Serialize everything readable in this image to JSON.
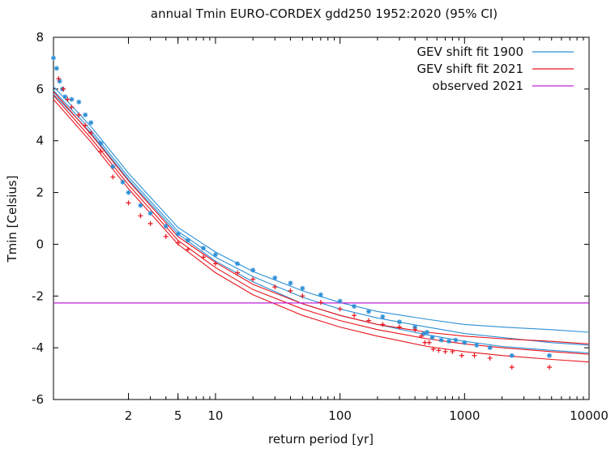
{
  "chart_data": {
    "type": "scatter",
    "title": "annual  Tmin EURO-CORDEX gdd250 1952:2020 (95% CI)",
    "xlabel": "return period [yr]",
    "ylabel": "Tmin [Celsius]",
    "x_scale": "log",
    "xlim": [
      0.5,
      10000
    ],
    "ylim": [
      -6,
      8
    ],
    "x_ticks": [
      {
        "value": 2,
        "label": "2"
      },
      {
        "value": 5,
        "label": "5"
      },
      {
        "value": 10,
        "label": "10"
      },
      {
        "value": 100,
        "label": "100"
      },
      {
        "value": 1000,
        "label": "1000"
      },
      {
        "value": 10000,
        "label": "10000"
      }
    ],
    "y_ticks": [
      {
        "value": 8,
        "label": "8"
      },
      {
        "value": 6,
        "label": "6"
      },
      {
        "value": 4,
        "label": "4"
      },
      {
        "value": 2,
        "label": "2"
      },
      {
        "value": 0,
        "label": "0"
      },
      {
        "value": -2,
        "label": "-2"
      },
      {
        "value": -4,
        "label": "-4"
      },
      {
        "value": -6,
        "label": "-6"
      }
    ],
    "legend": {
      "position": "top-right",
      "entries": [
        {
          "label": "GEV shift fit 1900",
          "color": "#2b8fd6"
        },
        {
          "label": "GEV shift fit 2021",
          "color": "#e8141c"
        },
        {
          "label": "observed 2021",
          "color": "#c020d8"
        }
      ]
    },
    "series": [
      {
        "name": "GEV shift fit 1900",
        "color": "#2b8fd6",
        "marker": "*",
        "points": [
          [
            0.5,
            7.2
          ],
          [
            0.53,
            6.8
          ],
          [
            0.56,
            6.3
          ],
          [
            0.59,
            6.0
          ],
          [
            0.62,
            5.7
          ],
          [
            0.7,
            5.6
          ],
          [
            0.8,
            5.5
          ],
          [
            0.9,
            5.0
          ],
          [
            1.0,
            4.7
          ],
          [
            1.2,
            3.9
          ],
          [
            1.5,
            3.0
          ],
          [
            1.8,
            2.4
          ],
          [
            2,
            2.0
          ],
          [
            2.5,
            1.5
          ],
          [
            3,
            1.2
          ],
          [
            4,
            0.7
          ],
          [
            5,
            0.4
          ],
          [
            6,
            0.15
          ],
          [
            8,
            -0.15
          ],
          [
            10,
            -0.4
          ],
          [
            15,
            -0.75
          ],
          [
            20,
            -1.0
          ],
          [
            30,
            -1.3
          ],
          [
            40,
            -1.5
          ],
          [
            50,
            -1.7
          ],
          [
            70,
            -1.95
          ],
          [
            100,
            -2.2
          ],
          [
            130,
            -2.4
          ],
          [
            170,
            -2.6
          ],
          [
            220,
            -2.8
          ],
          [
            300,
            -3.0
          ],
          [
            400,
            -3.2
          ],
          [
            470,
            -3.45
          ],
          [
            500,
            -3.4
          ],
          [
            550,
            -3.6
          ],
          [
            650,
            -3.7
          ],
          [
            750,
            -3.75
          ],
          [
            850,
            -3.7
          ],
          [
            1000,
            -3.8
          ],
          [
            1250,
            -3.9
          ],
          [
            1600,
            -4.0
          ],
          [
            2400,
            -4.3
          ],
          [
            4800,
            -4.3
          ]
        ],
        "fit": [
          [
            0.5,
            5.95
          ],
          [
            1,
            4.4
          ],
          [
            2,
            2.6
          ],
          [
            5,
            0.5
          ],
          [
            10,
            -0.5
          ],
          [
            20,
            -1.25
          ],
          [
            50,
            -2.05
          ],
          [
            100,
            -2.5
          ],
          [
            200,
            -2.85
          ],
          [
            500,
            -3.2
          ],
          [
            1000,
            -3.45
          ],
          [
            2000,
            -3.6
          ],
          [
            5000,
            -3.8
          ],
          [
            10000,
            -3.9
          ]
        ],
        "ci_upper": [
          [
            0.5,
            6.1
          ],
          [
            1,
            4.55
          ],
          [
            2,
            2.75
          ],
          [
            5,
            0.65
          ],
          [
            10,
            -0.3
          ],
          [
            20,
            -1.05
          ],
          [
            50,
            -1.8
          ],
          [
            100,
            -2.25
          ],
          [
            200,
            -2.6
          ],
          [
            500,
            -2.9
          ],
          [
            1000,
            -3.1
          ],
          [
            2000,
            -3.2
          ],
          [
            5000,
            -3.3
          ],
          [
            10000,
            -3.4
          ]
        ],
        "ci_lower": [
          [
            0.5,
            5.8
          ],
          [
            1,
            4.3
          ],
          [
            2,
            2.5
          ],
          [
            5,
            0.4
          ],
          [
            10,
            -0.65
          ],
          [
            20,
            -1.45
          ],
          [
            50,
            -2.3
          ],
          [
            100,
            -2.75
          ],
          [
            200,
            -3.1
          ],
          [
            500,
            -3.5
          ],
          [
            1000,
            -3.75
          ],
          [
            2000,
            -3.95
          ],
          [
            5000,
            -4.1
          ],
          [
            10000,
            -4.2
          ]
        ]
      },
      {
        "name": "GEV shift fit 2021",
        "color": "#e8141c",
        "marker": "+",
        "points": [
          [
            0.55,
            6.4
          ],
          [
            0.6,
            6.0
          ],
          [
            0.65,
            5.6
          ],
          [
            0.7,
            5.3
          ],
          [
            0.8,
            5.0
          ],
          [
            0.9,
            4.6
          ],
          [
            1.0,
            4.3
          ],
          [
            1.2,
            3.6
          ],
          [
            1.5,
            2.6
          ],
          [
            2,
            1.6
          ],
          [
            2.5,
            1.1
          ],
          [
            3,
            0.8
          ],
          [
            4,
            0.3
          ],
          [
            5,
            0.05
          ],
          [
            6,
            -0.2
          ],
          [
            8,
            -0.5
          ],
          [
            10,
            -0.75
          ],
          [
            15,
            -1.1
          ],
          [
            20,
            -1.35
          ],
          [
            30,
            -1.65
          ],
          [
            40,
            -1.8
          ],
          [
            50,
            -2.0
          ],
          [
            70,
            -2.25
          ],
          [
            100,
            -2.5
          ],
          [
            130,
            -2.75
          ],
          [
            170,
            -2.95
          ],
          [
            220,
            -3.1
          ],
          [
            300,
            -3.2
          ],
          [
            400,
            -3.3
          ],
          [
            450,
            -3.55
          ],
          [
            480,
            -3.8
          ],
          [
            520,
            -3.8
          ],
          [
            560,
            -4.05
          ],
          [
            620,
            -4.1
          ],
          [
            700,
            -4.15
          ],
          [
            800,
            -4.15
          ],
          [
            950,
            -4.3
          ],
          [
            1200,
            -4.3
          ],
          [
            1600,
            -4.4
          ],
          [
            2400,
            -4.75
          ],
          [
            4800,
            -4.75
          ]
        ],
        "fit": [
          [
            0.5,
            5.75
          ],
          [
            1,
            4.1
          ],
          [
            2,
            2.3
          ],
          [
            5,
            0.15
          ],
          [
            10,
            -0.9
          ],
          [
            20,
            -1.75
          ],
          [
            50,
            -2.5
          ],
          [
            100,
            -2.95
          ],
          [
            200,
            -3.3
          ],
          [
            500,
            -3.65
          ],
          [
            1000,
            -3.85
          ],
          [
            2000,
            -4.0
          ],
          [
            5000,
            -4.15
          ],
          [
            10000,
            -4.25
          ]
        ],
        "ci_upper": [
          [
            0.5,
            5.9
          ],
          [
            1,
            4.25
          ],
          [
            2,
            2.45
          ],
          [
            5,
            0.3
          ],
          [
            10,
            -0.7
          ],
          [
            20,
            -1.55
          ],
          [
            50,
            -2.3
          ],
          [
            100,
            -2.75
          ],
          [
            200,
            -3.1
          ],
          [
            500,
            -3.4
          ],
          [
            1000,
            -3.55
          ],
          [
            2000,
            -3.65
          ],
          [
            5000,
            -3.75
          ],
          [
            10000,
            -3.85
          ]
        ],
        "ci_lower": [
          [
            0.5,
            5.6
          ],
          [
            1,
            3.95
          ],
          [
            2,
            2.15
          ],
          [
            5,
            0.0
          ],
          [
            10,
            -1.1
          ],
          [
            20,
            -1.95
          ],
          [
            50,
            -2.75
          ],
          [
            100,
            -3.2
          ],
          [
            200,
            -3.55
          ],
          [
            500,
            -3.95
          ],
          [
            1000,
            -4.15
          ],
          [
            2000,
            -4.3
          ],
          [
            5000,
            -4.45
          ],
          [
            10000,
            -4.55
          ]
        ]
      },
      {
        "name": "observed 2021",
        "color": "#c020d8",
        "hline": -2.27
      }
    ]
  }
}
